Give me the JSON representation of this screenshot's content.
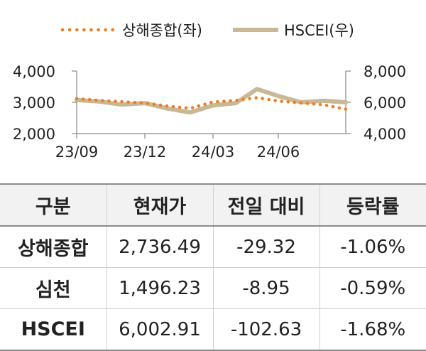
{
  "chart_data": {
    "type": "line",
    "legend_placement": "top",
    "x_tick_labels": [
      "23/09",
      "23/12",
      "24/03",
      "24/06"
    ],
    "y_left": {
      "ylim": [
        2000,
        4000
      ],
      "ticks": [
        "2,000",
        "3,000",
        "4,000"
      ]
    },
    "y_right": {
      "ylim": [
        4000,
        8000
      ],
      "ticks": [
        "4,000",
        "6,000",
        "8,000"
      ]
    },
    "series": [
      {
        "name": "상해종합(좌)",
        "axis": "left",
        "style": "dotted",
        "color": "#ee7d1e",
        "x": [
          "23/09",
          "23/10",
          "23/11",
          "23/12",
          "24/01",
          "24/02",
          "24/03",
          "24/04",
          "24/05",
          "24/06",
          "24/07",
          "24/08",
          "24/09"
        ],
        "values": [
          3120,
          3060,
          3020,
          2980,
          2880,
          2810,
          3010,
          3060,
          3150,
          3040,
          2980,
          2920,
          2780
        ]
      },
      {
        "name": "HSCEI(우)",
        "axis": "right",
        "style": "solid",
        "color": "#c8b896",
        "x": [
          "23/09",
          "23/10",
          "23/11",
          "23/12",
          "24/01",
          "24/02",
          "24/03",
          "24/04",
          "24/05",
          "24/06",
          "24/07",
          "24/08",
          "24/09"
        ],
        "values": [
          6150,
          6050,
          5850,
          5950,
          5600,
          5350,
          5800,
          5950,
          6850,
          6400,
          6000,
          6100,
          6000
        ]
      }
    ]
  },
  "table": {
    "headers": [
      "구분",
      "현재가",
      "전일 대비",
      "등락률"
    ],
    "rows": [
      [
        "상해종합",
        "2,736.49",
        "-29.32",
        "-1.06%"
      ],
      [
        "심천",
        "1,496.23",
        "-8.95",
        "-0.59%"
      ],
      [
        "HSCEI",
        "6,002.91",
        "-102.63",
        "-1.68%"
      ]
    ]
  }
}
